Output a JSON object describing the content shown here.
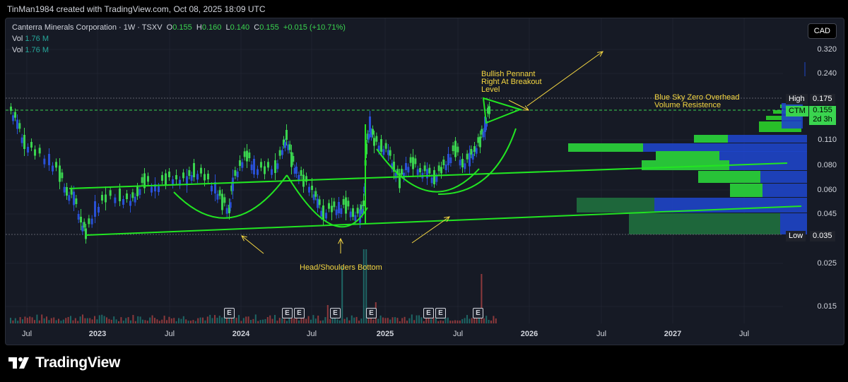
{
  "header": {
    "text": "TinMan1984 created with TradingView.com, Oct 08, 2025 18:09 UTC"
  },
  "legend": {
    "symbol": "Canterra Minerals Corporation · 1W · TSXV",
    "o_key": "O",
    "o": "0.155",
    "h_key": "H",
    "h": "0.160",
    "l_key": "L",
    "l": "0.140",
    "c_key": "C",
    "c": "0.155",
    "change": "+0.015 (+10.71%)",
    "vol_rows": [
      {
        "label": "Vol",
        "value": "1.76 M"
      },
      {
        "label": "Vol",
        "value": "1.76 M"
      }
    ]
  },
  "currency_button": "CAD",
  "y_axis": {
    "ticks": [
      "0.320",
      "0.240",
      "0.110",
      "0.080",
      "0.060",
      "0.045",
      "0.025",
      "0.015"
    ]
  },
  "price_labels": {
    "high_label": "High",
    "high_value": "0.175",
    "ticker": "CTM",
    "last_value": "0.155",
    "countdown": "2d 3h",
    "low_label": "Low",
    "low_value": "0.035"
  },
  "x_axis": {
    "ticks": [
      "Jul",
      "2023",
      "Jul",
      "2024",
      "Jul",
      "2025",
      "Jul",
      "2026",
      "Jul",
      "2027",
      "Jul"
    ],
    "year_ticks": [
      "2023",
      "2024",
      "2025",
      "2026",
      "2027"
    ]
  },
  "annotations": {
    "pennant": "Bullish Pennant\nRight At Breakout\nLevel",
    "blue_sky": "Blue Sky Zero Overhead\nVolume Resistence",
    "hs": "Head/Shoulders Bottom"
  },
  "earnings_badge": "E",
  "earnings_count": 9,
  "footer": {
    "brand": "TradingView"
  },
  "colors": {
    "bg": "#000000",
    "chart_bg": "#161a25",
    "up": "#3ad44f",
    "down": "#2950d6",
    "annotation": "#f5d742",
    "trendline": "#22e522",
    "vp_blue": "#1e45c8",
    "vp_green": "#2ad22a"
  }
}
